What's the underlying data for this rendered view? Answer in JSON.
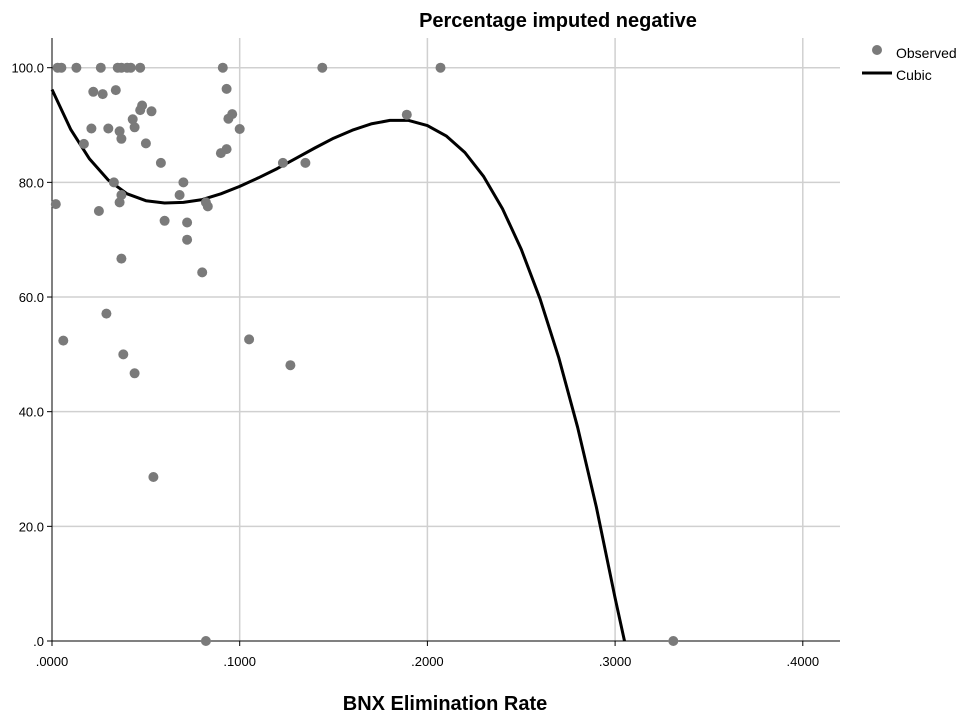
{
  "chart_data": {
    "type": "scatter",
    "title": "Percentage imputed negative",
    "xlabel": "BNX Elimination Rate",
    "ylabel": "",
    "xlim": [
      0,
      0.42
    ],
    "ylim": [
      0,
      105
    ],
    "x_ticks": [
      ".0000",
      ".1000",
      ".2000",
      ".3000",
      ".4000"
    ],
    "x_tick_values": [
      0,
      0.1,
      0.2,
      0.3,
      0.4
    ],
    "y_ticks": [
      ".0",
      "20.0",
      "40.0",
      "60.0",
      "80.0",
      "100.0"
    ],
    "y_tick_values": [
      0,
      20,
      40,
      60,
      80,
      100
    ],
    "grid": true,
    "legend_position": "top-right",
    "series": [
      {
        "name": "Observed",
        "kind": "points",
        "color": "#7a7a7a",
        "points": [
          [
            0.003,
            100
          ],
          [
            0.005,
            100
          ],
          [
            0.013,
            100
          ],
          [
            0.026,
            100
          ],
          [
            0.035,
            100
          ],
          [
            0.037,
            100
          ],
          [
            0.04,
            100
          ],
          [
            0.042,
            100
          ],
          [
            0.047,
            100
          ],
          [
            0.091,
            100
          ],
          [
            0.144,
            100
          ],
          [
            0.207,
            100
          ],
          [
            0.022,
            95.8
          ],
          [
            0.027,
            95.4
          ],
          [
            0.034,
            96.1
          ],
          [
            0.093,
            96.3
          ],
          [
            0.048,
            93.4
          ],
          [
            0.047,
            92.6
          ],
          [
            0.053,
            92.4
          ],
          [
            0.096,
            91.9
          ],
          [
            0.094,
            91.1
          ],
          [
            0.043,
            91.0
          ],
          [
            0.189,
            91.8
          ],
          [
            0.021,
            89.4
          ],
          [
            0.03,
            89.4
          ],
          [
            0.036,
            88.9
          ],
          [
            0.044,
            89.6
          ],
          [
            0.1,
            89.3
          ],
          [
            0.037,
            87.6
          ],
          [
            0.017,
            86.7
          ],
          [
            0.05,
            86.8
          ],
          [
            0.093,
            85.8
          ],
          [
            0.09,
            85.1
          ],
          [
            0.058,
            83.4
          ],
          [
            0.123,
            83.4
          ],
          [
            0.135,
            83.4
          ],
          [
            0.033,
            80.0
          ],
          [
            0.07,
            80.0
          ],
          [
            0.037,
            77.8
          ],
          [
            0.068,
            77.8
          ],
          [
            0.036,
            76.5
          ],
          [
            0.082,
            76.5
          ],
          [
            0.002,
            76.2
          ],
          [
            0.083,
            75.8
          ],
          [
            0.025,
            75.0
          ],
          [
            0.06,
            73.3
          ],
          [
            0.072,
            73.0
          ],
          [
            0.072,
            70.0
          ],
          [
            0.037,
            66.7
          ],
          [
            0.08,
            64.3
          ],
          [
            0.029,
            57.1
          ],
          [
            0.006,
            52.4
          ],
          [
            0.105,
            52.6
          ],
          [
            0.038,
            50.0
          ],
          [
            0.127,
            48.1
          ],
          [
            0.044,
            46.7
          ],
          [
            0.054,
            28.6
          ],
          [
            0.082,
            0
          ],
          [
            0.331,
            0
          ]
        ]
      },
      {
        "name": "Cubic",
        "kind": "line",
        "color": "#000000",
        "points": [
          [
            0.0,
            96.2
          ],
          [
            0.01,
            89.2
          ],
          [
            0.02,
            84.1
          ],
          [
            0.03,
            80.4
          ],
          [
            0.04,
            78.0
          ],
          [
            0.05,
            76.8
          ],
          [
            0.06,
            76.4
          ],
          [
            0.07,
            76.5
          ],
          [
            0.08,
            77.0
          ],
          [
            0.09,
            78.0
          ],
          [
            0.1,
            79.3
          ],
          [
            0.11,
            80.8
          ],
          [
            0.12,
            82.4
          ],
          [
            0.13,
            84.2
          ],
          [
            0.14,
            86.0
          ],
          [
            0.15,
            87.7
          ],
          [
            0.16,
            89.1
          ],
          [
            0.17,
            90.2
          ],
          [
            0.18,
            90.8
          ],
          [
            0.19,
            90.8
          ],
          [
            0.2,
            89.9
          ],
          [
            0.21,
            88.1
          ],
          [
            0.22,
            85.2
          ],
          [
            0.23,
            81.0
          ],
          [
            0.24,
            75.4
          ],
          [
            0.25,
            68.3
          ],
          [
            0.26,
            59.7
          ],
          [
            0.27,
            49.4
          ],
          [
            0.28,
            37.3
          ],
          [
            0.29,
            23.4
          ],
          [
            0.3,
            7.5
          ],
          [
            0.305,
            0
          ]
        ]
      }
    ]
  }
}
